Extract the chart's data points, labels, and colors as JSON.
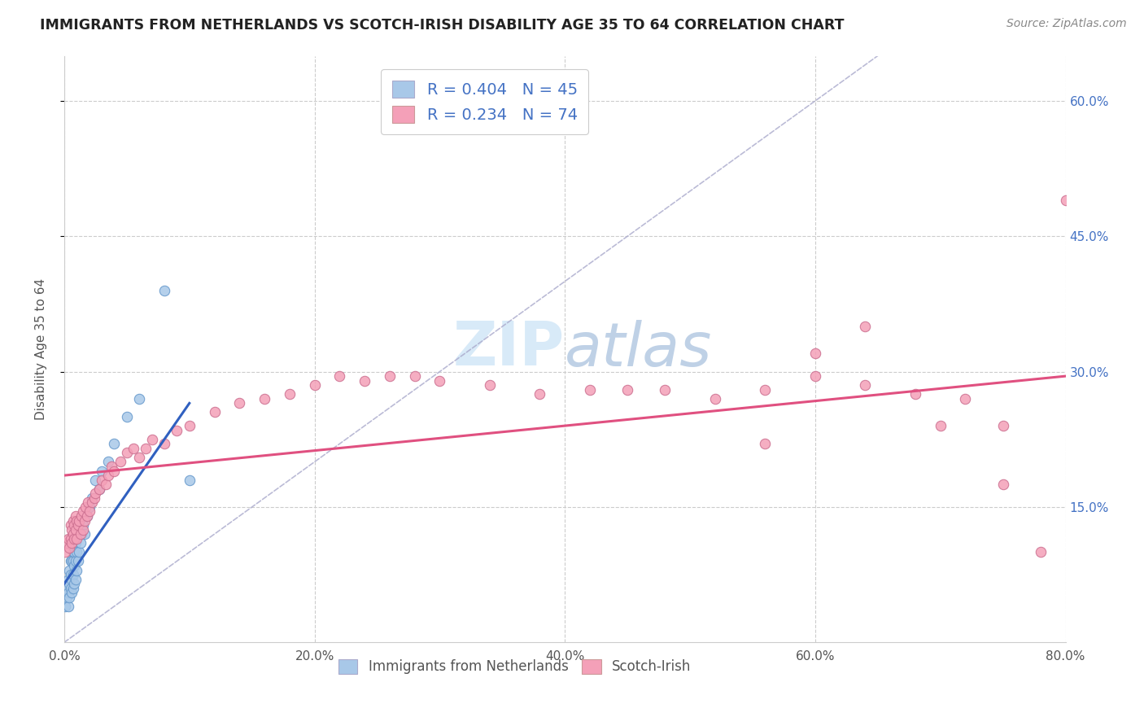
{
  "title": "IMMIGRANTS FROM NETHERLANDS VS SCOTCH-IRISH DISABILITY AGE 35 TO 64 CORRELATION CHART",
  "source": "Source: ZipAtlas.com",
  "ylabel": "Disability Age 35 to 64",
  "xmin": 0.0,
  "xmax": 0.8,
  "ymin": 0.0,
  "ymax": 0.65,
  "xtick_labels": [
    "0.0%",
    "20.0%",
    "40.0%",
    "60.0%",
    "80.0%"
  ],
  "xtick_values": [
    0.0,
    0.2,
    0.4,
    0.6,
    0.8
  ],
  "ytick_labels": [
    "15.0%",
    "30.0%",
    "45.0%",
    "60.0%"
  ],
  "ytick_values": [
    0.15,
    0.3,
    0.45,
    0.6
  ],
  "legend_r1": "R = 0.404",
  "legend_n1": "N = 45",
  "legend_r2": "R = 0.234",
  "legend_n2": "N = 74",
  "color_netherlands": "#a8c8e8",
  "color_scotch_irish": "#f4a0b8",
  "color_trend_nl": "#3060c0",
  "color_trend_si": "#e05080",
  "color_diag": "#aaaacc",
  "color_blue_label": "#4472c4",
  "watermark_color": "#ddeeff",
  "netherlands_x": [
    0.001,
    0.002,
    0.002,
    0.003,
    0.003,
    0.003,
    0.004,
    0.004,
    0.004,
    0.005,
    0.005,
    0.005,
    0.006,
    0.006,
    0.006,
    0.007,
    0.007,
    0.007,
    0.007,
    0.008,
    0.008,
    0.008,
    0.009,
    0.009,
    0.009,
    0.01,
    0.01,
    0.011,
    0.012,
    0.013,
    0.014,
    0.015,
    0.016,
    0.018,
    0.02,
    0.022,
    0.025,
    0.028,
    0.03,
    0.035,
    0.04,
    0.05,
    0.06,
    0.08,
    0.1
  ],
  "netherlands_y": [
    0.04,
    0.05,
    0.06,
    0.04,
    0.055,
    0.07,
    0.05,
    0.065,
    0.08,
    0.06,
    0.075,
    0.09,
    0.055,
    0.07,
    0.09,
    0.06,
    0.075,
    0.09,
    0.1,
    0.065,
    0.085,
    0.1,
    0.07,
    0.09,
    0.11,
    0.08,
    0.1,
    0.09,
    0.1,
    0.11,
    0.12,
    0.13,
    0.12,
    0.14,
    0.15,
    0.16,
    0.18,
    0.17,
    0.19,
    0.2,
    0.22,
    0.25,
    0.27,
    0.39,
    0.18
  ],
  "netherlands_trend_x": [
    0.0,
    0.1
  ],
  "netherlands_trend_y": [
    0.065,
    0.265
  ],
  "scotch_irish_x": [
    0.001,
    0.002,
    0.003,
    0.004,
    0.005,
    0.005,
    0.006,
    0.006,
    0.007,
    0.007,
    0.008,
    0.008,
    0.009,
    0.009,
    0.01,
    0.01,
    0.011,
    0.012,
    0.013,
    0.014,
    0.015,
    0.015,
    0.016,
    0.017,
    0.018,
    0.019,
    0.02,
    0.022,
    0.024,
    0.025,
    0.028,
    0.03,
    0.033,
    0.035,
    0.038,
    0.04,
    0.045,
    0.05,
    0.055,
    0.06,
    0.065,
    0.07,
    0.08,
    0.09,
    0.1,
    0.12,
    0.14,
    0.16,
    0.18,
    0.2,
    0.22,
    0.24,
    0.26,
    0.28,
    0.3,
    0.34,
    0.38,
    0.42,
    0.45,
    0.48,
    0.52,
    0.56,
    0.6,
    0.64,
    0.68,
    0.72,
    0.75,
    0.78,
    0.8,
    0.75,
    0.7,
    0.64,
    0.6,
    0.56
  ],
  "scotch_irish_y": [
    0.1,
    0.11,
    0.115,
    0.105,
    0.115,
    0.13,
    0.11,
    0.125,
    0.12,
    0.135,
    0.115,
    0.13,
    0.125,
    0.14,
    0.115,
    0.135,
    0.13,
    0.135,
    0.12,
    0.14,
    0.125,
    0.145,
    0.135,
    0.15,
    0.14,
    0.155,
    0.145,
    0.155,
    0.16,
    0.165,
    0.17,
    0.18,
    0.175,
    0.185,
    0.195,
    0.19,
    0.2,
    0.21,
    0.215,
    0.205,
    0.215,
    0.225,
    0.22,
    0.235,
    0.24,
    0.255,
    0.265,
    0.27,
    0.275,
    0.285,
    0.295,
    0.29,
    0.295,
    0.295,
    0.29,
    0.285,
    0.275,
    0.28,
    0.28,
    0.28,
    0.27,
    0.28,
    0.295,
    0.285,
    0.275,
    0.27,
    0.24,
    0.1,
    0.49,
    0.175,
    0.24,
    0.35,
    0.32,
    0.22
  ],
  "scotch_irish_trend_x": [
    0.0,
    0.8
  ],
  "scotch_irish_trend_y": [
    0.185,
    0.295
  ]
}
